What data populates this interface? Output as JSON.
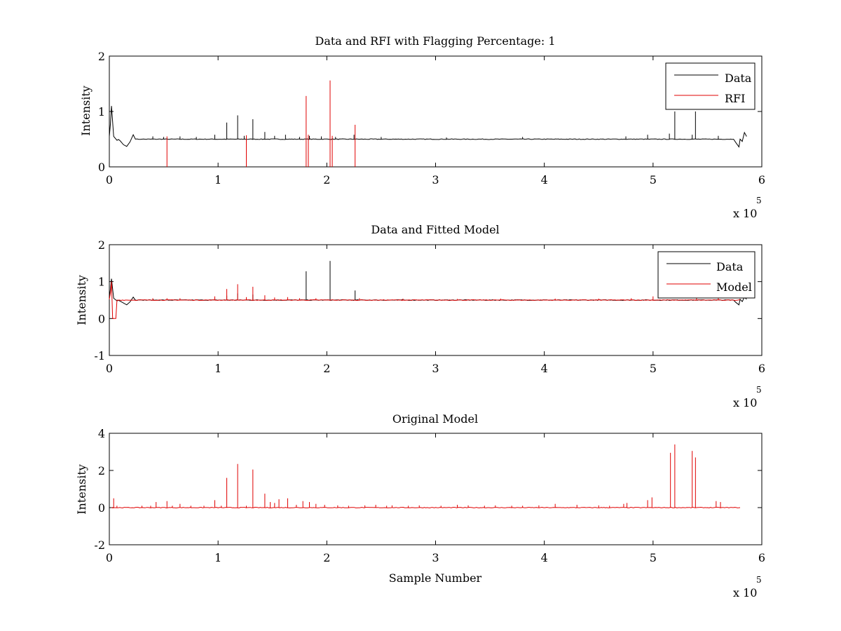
{
  "figure": {
    "background": "#ffffff",
    "colors": {
      "data": "#000000",
      "rfi": "#e00000",
      "model": "#e00000"
    }
  },
  "chart_data": [
    {
      "type": "line",
      "title": "Data and RFI with Flagging Percentage: 1",
      "xlabel": "",
      "ylabel": "Intensity",
      "xlim": [
        0,
        6
      ],
      "ylim": [
        0,
        2
      ],
      "xticks": [
        "0",
        "1",
        "2",
        "3",
        "4",
        "5",
        "6"
      ],
      "yticks": [
        "0",
        "1",
        "2"
      ],
      "x_multiplier": {
        "base": "x 10",
        "exponent": "5"
      },
      "grid": false,
      "legend": {
        "position": "top-right",
        "entries": [
          "Data",
          "RFI"
        ]
      },
      "series": [
        {
          "name": "Data",
          "color": "#000000",
          "baseline": 0.5,
          "points": [
            [
              0.0,
              0.55
            ],
            [
              0.01,
              0.78
            ],
            [
              0.02,
              1.1
            ],
            [
              0.04,
              0.55
            ],
            [
              0.07,
              0.48
            ],
            [
              0.1,
              0.47
            ],
            [
              0.13,
              0.4
            ],
            [
              0.16,
              0.37
            ],
            [
              0.19,
              0.45
            ],
            [
              0.22,
              0.58
            ],
            [
              0.24,
              0.5
            ],
            [
              0.3,
              0.5
            ],
            [
              5.74,
              0.5
            ],
            [
              5.76,
              0.44
            ],
            [
              5.79,
              0.36
            ],
            [
              5.82,
              0.46
            ],
            [
              5.84,
              0.62
            ],
            [
              5.86,
              0.55
            ],
            [
              5.8,
              0.5
            ]
          ],
          "spikes": [
            [
              0.4,
              0.55
            ],
            [
              0.5,
              0.54
            ],
            [
              0.65,
              0.55
            ],
            [
              0.8,
              0.54
            ],
            [
              0.97,
              0.58
            ],
            [
              1.08,
              0.8
            ],
            [
              1.18,
              0.93
            ],
            [
              1.24,
              0.56
            ],
            [
              1.32,
              0.86
            ],
            [
              1.43,
              0.63
            ],
            [
              1.52,
              0.56
            ],
            [
              1.62,
              0.58
            ],
            [
              1.75,
              0.54
            ],
            [
              1.84,
              0.56
            ],
            [
              1.95,
              0.55
            ],
            [
              2.08,
              0.54
            ],
            [
              2.25,
              0.58
            ],
            [
              2.5,
              0.54
            ],
            [
              3.1,
              0.53
            ],
            [
              3.8,
              0.54
            ],
            [
              4.75,
              0.55
            ],
            [
              4.95,
              0.58
            ],
            [
              5.15,
              0.6
            ],
            [
              5.2,
              1.0
            ],
            [
              5.36,
              0.58
            ],
            [
              5.39,
              1.0
            ],
            [
              5.6,
              0.56
            ]
          ]
        },
        {
          "name": "RFI",
          "color": "#e00000",
          "spikes": [
            [
              0.53,
              0.55
            ],
            [
              1.26,
              0.57
            ],
            [
              1.81,
              1.28
            ],
            [
              1.83,
              0.58
            ],
            [
              2.03,
              1.56
            ],
            [
              2.05,
              0.56
            ],
            [
              2.26,
              0.76
            ]
          ]
        }
      ]
    },
    {
      "type": "line",
      "title": "Data and Fitted Model",
      "xlabel": "",
      "ylabel": "Intensity",
      "xlim": [
        0,
        6
      ],
      "ylim": [
        -1,
        2
      ],
      "xticks": [
        "0",
        "1",
        "2",
        "3",
        "4",
        "5",
        "6"
      ],
      "yticks": [
        "-1",
        "0",
        "1",
        "2"
      ],
      "x_multiplier": {
        "base": "x 10",
        "exponent": "5"
      },
      "grid": false,
      "legend": {
        "position": "top-right",
        "entries": [
          "Data",
          "Model"
        ]
      },
      "series": [
        {
          "name": "Data",
          "color": "#000000",
          "baseline": 0.5,
          "points": [
            [
              0.0,
              0.55
            ],
            [
              0.01,
              0.8
            ],
            [
              0.02,
              1.08
            ],
            [
              0.04,
              0.55
            ],
            [
              0.07,
              0.48
            ],
            [
              0.1,
              0.47
            ],
            [
              0.13,
              0.42
            ],
            [
              0.16,
              0.37
            ],
            [
              0.19,
              0.45
            ],
            [
              0.22,
              0.58
            ],
            [
              0.24,
              0.5
            ],
            [
              0.3,
              0.5
            ],
            [
              5.74,
              0.5
            ],
            [
              5.76,
              0.44
            ],
            [
              5.79,
              0.37
            ],
            [
              5.82,
              0.46
            ],
            [
              5.84,
              0.58
            ],
            [
              5.86,
              0.52
            ],
            [
              5.8,
              0.52
            ]
          ],
          "spikes": [
            [
              1.81,
              1.28
            ],
            [
              2.03,
              1.56
            ],
            [
              2.26,
              0.76
            ],
            [
              1.08,
              0.62
            ],
            [
              1.18,
              0.68
            ],
            [
              1.32,
              0.65
            ]
          ]
        },
        {
          "name": "Model",
          "color": "#e00000",
          "baseline": 0.5,
          "points": [
            [
              0.0,
              0.52
            ],
            [
              0.01,
              0.7
            ],
            [
              0.02,
              1.0
            ],
            [
              0.03,
              0.0
            ],
            [
              0.06,
              0.0
            ],
            [
              0.07,
              0.5
            ],
            [
              5.8,
              0.52
            ]
          ],
          "spikes": [
            [
              0.4,
              0.55
            ],
            [
              0.53,
              0.55
            ],
            [
              0.65,
              0.55
            ],
            [
              0.97,
              0.6
            ],
            [
              1.08,
              0.8
            ],
            [
              1.18,
              0.93
            ],
            [
              1.26,
              0.58
            ],
            [
              1.32,
              0.86
            ],
            [
              1.43,
              0.63
            ],
            [
              1.52,
              0.57
            ],
            [
              1.64,
              0.58
            ],
            [
              1.75,
              0.55
            ],
            [
              1.9,
              0.55
            ],
            [
              2.3,
              0.55
            ],
            [
              2.7,
              0.54
            ],
            [
              3.2,
              0.53
            ],
            [
              3.6,
              0.54
            ],
            [
              4.1,
              0.54
            ],
            [
              4.5,
              0.54
            ],
            [
              4.8,
              0.55
            ],
            [
              5.0,
              0.6
            ],
            [
              5.4,
              0.56
            ],
            [
              5.6,
              0.55
            ]
          ]
        }
      ]
    },
    {
      "type": "line",
      "title": "Original Model",
      "xlabel": "Sample Number",
      "ylabel": "Intensity",
      "xlim": [
        0,
        6
      ],
      "ylim": [
        -2,
        4
      ],
      "xticks": [
        "0",
        "1",
        "2",
        "3",
        "4",
        "5",
        "6"
      ],
      "yticks": [
        "-2",
        "0",
        "2",
        "4"
      ],
      "x_multiplier": {
        "base": "x 10",
        "exponent": "5"
      },
      "grid": false,
      "legend": null,
      "series": [
        {
          "name": "",
          "color": "#e00000",
          "baseline": 0.0,
          "points": [
            [
              0.02,
              0.0
            ],
            [
              5.8,
              0.0
            ]
          ],
          "spikes": [
            [
              0.04,
              0.5
            ],
            [
              0.07,
              0.1
            ],
            [
              0.3,
              0.1
            ],
            [
              0.38,
              0.1
            ],
            [
              0.43,
              0.3
            ],
            [
              0.53,
              0.35
            ],
            [
              0.58,
              0.1
            ],
            [
              0.65,
              0.2
            ],
            [
              0.75,
              0.1
            ],
            [
              0.87,
              0.1
            ],
            [
              0.97,
              0.4
            ],
            [
              1.03,
              0.1
            ],
            [
              1.08,
              1.6
            ],
            [
              1.18,
              2.35
            ],
            [
              1.26,
              0.1
            ],
            [
              1.32,
              2.05
            ],
            [
              1.43,
              0.75
            ],
            [
              1.48,
              0.3
            ],
            [
              1.52,
              0.25
            ],
            [
              1.56,
              0.45
            ],
            [
              1.64,
              0.5
            ],
            [
              1.72,
              0.15
            ],
            [
              1.78,
              0.35
            ],
            [
              1.84,
              0.3
            ],
            [
              1.9,
              0.2
            ],
            [
              1.98,
              0.15
            ],
            [
              2.1,
              0.12
            ],
            [
              2.2,
              0.1
            ],
            [
              2.35,
              0.12
            ],
            [
              2.45,
              0.15
            ],
            [
              2.55,
              0.1
            ],
            [
              2.6,
              0.12
            ],
            [
              2.75,
              0.1
            ],
            [
              2.85,
              0.12
            ],
            [
              3.05,
              0.1
            ],
            [
              3.2,
              0.15
            ],
            [
              3.3,
              0.12
            ],
            [
              3.45,
              0.1
            ],
            [
              3.55,
              0.12
            ],
            [
              3.7,
              0.1
            ],
            [
              3.8,
              0.1
            ],
            [
              3.95,
              0.12
            ],
            [
              4.1,
              0.2
            ],
            [
              4.3,
              0.15
            ],
            [
              4.5,
              0.12
            ],
            [
              4.6,
              0.1
            ],
            [
              4.73,
              0.2
            ],
            [
              4.76,
              0.25
            ],
            [
              4.95,
              0.4
            ],
            [
              4.99,
              0.55
            ],
            [
              5.16,
              2.95
            ],
            [
              5.2,
              3.4
            ],
            [
              5.36,
              3.05
            ],
            [
              5.39,
              2.7
            ],
            [
              5.58,
              0.35
            ],
            [
              5.62,
              0.3
            ]
          ]
        }
      ]
    }
  ]
}
